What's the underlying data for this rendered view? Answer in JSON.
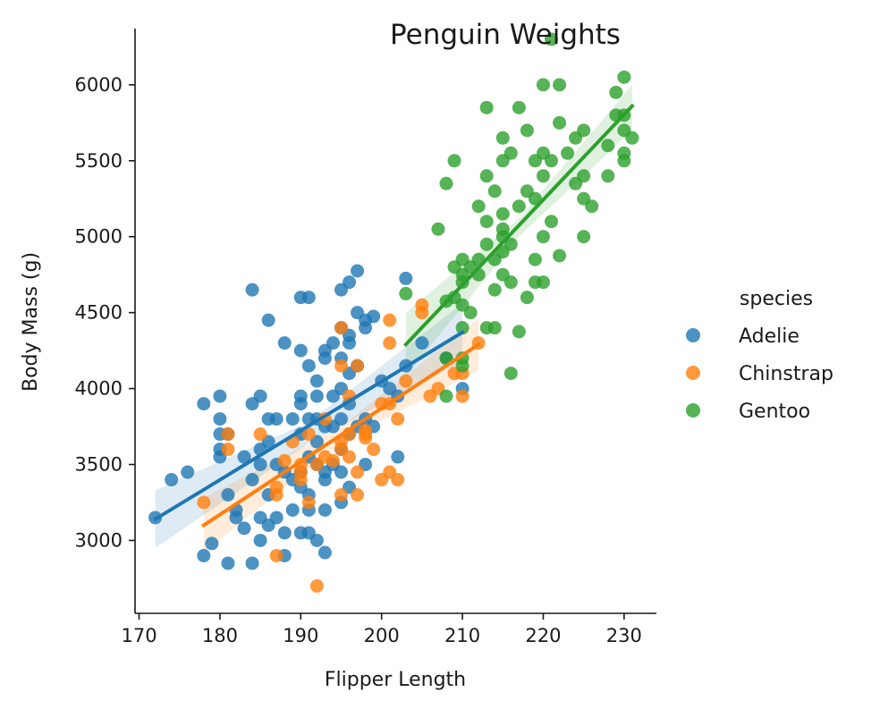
{
  "chart_data": {
    "type": "scatter",
    "title": "Penguin Weights",
    "xlabel": "Flipper Length",
    "ylabel": "Body Mass (g)",
    "xlim": [
      169.5,
      234
    ],
    "ylim": [
      2520,
      6370
    ],
    "xticks": [
      170,
      180,
      190,
      200,
      210,
      220,
      230
    ],
    "yticks": [
      3000,
      3500,
      4000,
      4500,
      5000,
      5500,
      6000
    ],
    "grid": false,
    "legend": {
      "title": "species",
      "placement": "right"
    },
    "series": [
      {
        "name": "Adelie",
        "color": "#1f77b4",
        "regression": {
          "x": [
            172,
            210
          ],
          "y": [
            3140,
            4370
          ]
        },
        "ci_band": {
          "x": [
            172,
            191,
            210
          ],
          "lo": [
            2950,
            3640,
            4180
          ],
          "hi": [
            3330,
            3780,
            4560
          ]
        },
        "points": [
          [
            172,
            3150
          ],
          [
            174,
            3400
          ],
          [
            176,
            3450
          ],
          [
            178,
            3900
          ],
          [
            178,
            2900
          ],
          [
            179,
            2980
          ],
          [
            180,
            3950
          ],
          [
            180,
            3800
          ],
          [
            180,
            3700
          ],
          [
            180,
            3600
          ],
          [
            180,
            3550
          ],
          [
            181,
            2850
          ],
          [
            181,
            3300
          ],
          [
            181,
            3700
          ],
          [
            182,
            3200
          ],
          [
            182,
            3150
          ],
          [
            183,
            3550
          ],
          [
            183,
            3080
          ],
          [
            184,
            3900
          ],
          [
            184,
            4650
          ],
          [
            184,
            3400
          ],
          [
            184,
            2850
          ],
          [
            185,
            3950
          ],
          [
            185,
            3600
          ],
          [
            185,
            3500
          ],
          [
            185,
            3150
          ],
          [
            185,
            3000
          ],
          [
            186,
            3800
          ],
          [
            186,
            4450
          ],
          [
            186,
            3650
          ],
          [
            186,
            3300
          ],
          [
            186,
            3100
          ],
          [
            187,
            3800
          ],
          [
            187,
            3500
          ],
          [
            187,
            3150
          ],
          [
            188,
            4300
          ],
          [
            188,
            3450
          ],
          [
            188,
            3050
          ],
          [
            188,
            2900
          ],
          [
            189,
            3800
          ],
          [
            189,
            3400
          ],
          [
            189,
            3200
          ],
          [
            190,
            4250
          ],
          [
            190,
            4600
          ],
          [
            190,
            3950
          ],
          [
            190,
            3900
          ],
          [
            190,
            3700
          ],
          [
            190,
            3450
          ],
          [
            190,
            3350
          ],
          [
            190,
            3050
          ],
          [
            191,
            4600
          ],
          [
            191,
            4150
          ],
          [
            191,
            3800
          ],
          [
            191,
            3550
          ],
          [
            191,
            3300
          ],
          [
            191,
            3200
          ],
          [
            191,
            3050
          ],
          [
            192,
            4050
          ],
          [
            192,
            3950
          ],
          [
            192,
            3800
          ],
          [
            192,
            3650
          ],
          [
            192,
            3500
          ],
          [
            192,
            3000
          ],
          [
            193,
            4250
          ],
          [
            193,
            4200
          ],
          [
            193,
            3750
          ],
          [
            193,
            3450
          ],
          [
            193,
            3400
          ],
          [
            193,
            3200
          ],
          [
            193,
            2920
          ],
          [
            194,
            4300
          ],
          [
            194,
            3950
          ],
          [
            194,
            3750
          ],
          [
            194,
            3500
          ],
          [
            195,
            4650
          ],
          [
            195,
            4400
          ],
          [
            195,
            4200
          ],
          [
            195,
            4000
          ],
          [
            195,
            3800
          ],
          [
            195,
            3600
          ],
          [
            195,
            3450
          ],
          [
            195,
            3250
          ],
          [
            196,
            4700
          ],
          [
            196,
            4350
          ],
          [
            196,
            4300
          ],
          [
            196,
            4100
          ],
          [
            196,
            3900
          ],
          [
            196,
            3700
          ],
          [
            196,
            3350
          ],
          [
            197,
            4775
          ],
          [
            197,
            4500
          ],
          [
            197,
            4150
          ],
          [
            197,
            3750
          ],
          [
            198,
            4400
          ],
          [
            198,
            4450
          ],
          [
            198,
            3800
          ],
          [
            198,
            3500
          ],
          [
            199,
            4475
          ],
          [
            199,
            3750
          ],
          [
            200,
            4050
          ],
          [
            201,
            4000
          ],
          [
            202,
            3950
          ],
          [
            202,
            3550
          ],
          [
            203,
            4725
          ],
          [
            203,
            4150
          ],
          [
            205,
            4300
          ],
          [
            208,
            4200
          ],
          [
            210,
            4000
          ]
        ]
      },
      {
        "name": "Chinstrap",
        "color": "#ff7f0e",
        "regression": {
          "x": [
            178,
            212
          ],
          "y": [
            3100,
            4290
          ]
        },
        "ci_band": {
          "x": [
            178,
            195,
            212
          ],
          "lo": [
            2920,
            3650,
            4120
          ],
          "hi": [
            3280,
            3750,
            4460
          ]
        },
        "points": [
          [
            178,
            3250
          ],
          [
            181,
            3600
          ],
          [
            181,
            3700
          ],
          [
            185,
            3700
          ],
          [
            187,
            2900
          ],
          [
            187,
            3300
          ],
          [
            187,
            3350
          ],
          [
            188,
            3525
          ],
          [
            189,
            3650
          ],
          [
            190,
            3450
          ],
          [
            190,
            3400
          ],
          [
            190,
            3500
          ],
          [
            191,
            3250
          ],
          [
            191,
            3700
          ],
          [
            192,
            2700
          ],
          [
            192,
            3500
          ],
          [
            193,
            3550
          ],
          [
            193,
            3800
          ],
          [
            194,
            3525
          ],
          [
            195,
            4400
          ],
          [
            195,
            3650
          ],
          [
            195,
            3600
          ],
          [
            195,
            3300
          ],
          [
            195,
            4150
          ],
          [
            196,
            3950
          ],
          [
            196,
            3700
          ],
          [
            196,
            3550
          ],
          [
            197,
            3450
          ],
          [
            197,
            4150
          ],
          [
            197,
            3300
          ],
          [
            198,
            3700
          ],
          [
            198,
            3725
          ],
          [
            198,
            3675
          ],
          [
            199,
            3600
          ],
          [
            200,
            3400
          ],
          [
            200,
            3900
          ],
          [
            201,
            4450
          ],
          [
            201,
            3900
          ],
          [
            201,
            4300
          ],
          [
            201,
            3450
          ],
          [
            202,
            3800
          ],
          [
            202,
            3400
          ],
          [
            203,
            4050
          ],
          [
            205,
            4550
          ],
          [
            205,
            4500
          ],
          [
            206,
            3950
          ],
          [
            207,
            4000
          ],
          [
            209,
            4100
          ],
          [
            210,
            4100
          ],
          [
            210,
            3950
          ],
          [
            212,
            4300
          ]
        ]
      },
      {
        "name": "Gentoo",
        "color": "#2ca02c",
        "regression": {
          "x": [
            203,
            231
          ],
          "y": [
            4290,
            5860
          ]
        },
        "ci_band": {
          "x": [
            203,
            217,
            231
          ],
          "lo": [
            4080,
            5000,
            5700
          ],
          "hi": [
            4500,
            5120,
            6000
          ]
        },
        "points": [
          [
            203,
            4625
          ],
          [
            207,
            5050
          ],
          [
            208,
            4575
          ],
          [
            208,
            3950
          ],
          [
            208,
            4200
          ],
          [
            208,
            5350
          ],
          [
            209,
            4600
          ],
          [
            209,
            4800
          ],
          [
            209,
            5500
          ],
          [
            210,
            4700
          ],
          [
            210,
            4750
          ],
          [
            210,
            4850
          ],
          [
            210,
            4400
          ],
          [
            210,
            4200
          ],
          [
            210,
            4150
          ],
          [
            210,
            4550
          ],
          [
            211,
            4500
          ],
          [
            211,
            4800
          ],
          [
            212,
            4850
          ],
          [
            212,
            5200
          ],
          [
            212,
            4750
          ],
          [
            213,
            5850
          ],
          [
            213,
            5400
          ],
          [
            213,
            4400
          ],
          [
            213,
            4950
          ],
          [
            213,
            5100
          ],
          [
            214,
            4650
          ],
          [
            214,
            4400
          ],
          [
            214,
            4850
          ],
          [
            214,
            5300
          ],
          [
            215,
            5650
          ],
          [
            215,
            5000
          ],
          [
            215,
            5500
          ],
          [
            215,
            5050
          ],
          [
            215,
            4750
          ],
          [
            215,
            5150
          ],
          [
            215,
            4900
          ],
          [
            216,
            5550
          ],
          [
            216,
            4950
          ],
          [
            216,
            4700
          ],
          [
            216,
            4100
          ],
          [
            217,
            5850
          ],
          [
            217,
            5200
          ],
          [
            217,
            4375
          ],
          [
            218,
            5700
          ],
          [
            218,
            5300
          ],
          [
            218,
            4600
          ],
          [
            219,
            4850
          ],
          [
            219,
            5500
          ],
          [
            219,
            5250
          ],
          [
            219,
            4700
          ],
          [
            220,
            6000
          ],
          [
            220,
            5550
          ],
          [
            220,
            5400
          ],
          [
            220,
            5000
          ],
          [
            220,
            4700
          ],
          [
            221,
            6300
          ],
          [
            221,
            5100
          ],
          [
            221,
            5500
          ],
          [
            222,
            6000
          ],
          [
            222,
            5750
          ],
          [
            222,
            4875
          ],
          [
            223,
            5550
          ],
          [
            224,
            5650
          ],
          [
            224,
            5350
          ],
          [
            225,
            5700
          ],
          [
            225,
            5250
          ],
          [
            225,
            5400
          ],
          [
            225,
            5000
          ],
          [
            226,
            5200
          ],
          [
            228,
            5600
          ],
          [
            228,
            5400
          ],
          [
            229,
            5950
          ],
          [
            229,
            5800
          ],
          [
            230,
            6050
          ],
          [
            230,
            5800
          ],
          [
            230,
            5700
          ],
          [
            230,
            5550
          ],
          [
            230,
            5500
          ],
          [
            231,
            5650
          ]
        ]
      }
    ]
  }
}
